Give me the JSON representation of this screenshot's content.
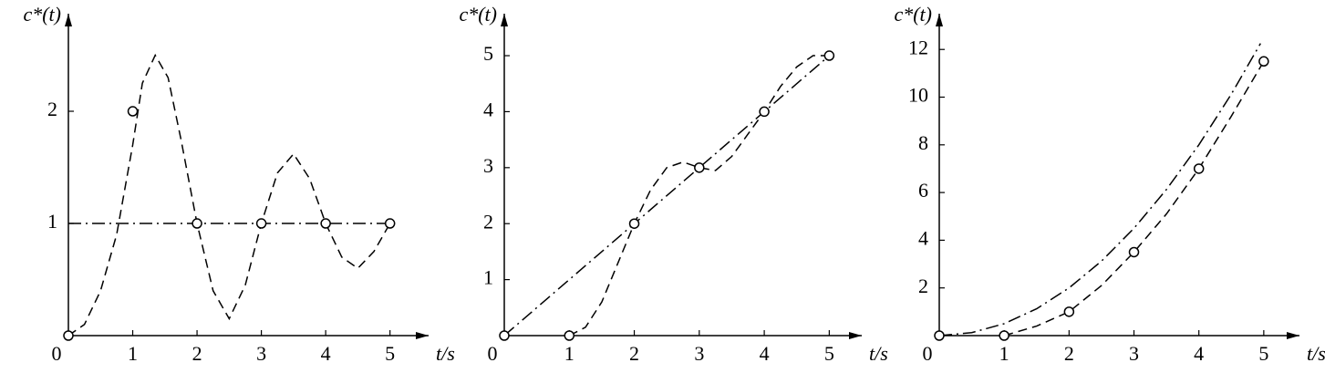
{
  "chart_data": [
    {
      "type": "line",
      "ylabel": "c*(t)",
      "xlabel": "t/s",
      "xlim": [
        0,
        5.6
      ],
      "ylim": [
        0,
        2.87
      ],
      "xticks": [
        0,
        1,
        2,
        3,
        4,
        5
      ],
      "yticks": [
        1,
        2
      ],
      "series": [
        {
          "color": "#000000",
          "linestyle": "dashdot",
          "x": [
            0,
            5
          ],
          "values": [
            1,
            1
          ]
        },
        {
          "color": "#000000",
          "linestyle": "dashed",
          "x": [
            0,
            0.25,
            0.5,
            0.75,
            1,
            1.15,
            1.35,
            1.55,
            1.75,
            2,
            2.25,
            2.5,
            2.75,
            3,
            3.25,
            3.5,
            3.75,
            4,
            4.25,
            4.5,
            4.75,
            5
          ],
          "values": [
            0,
            0.1,
            0.4,
            0.9,
            1.7,
            2.25,
            2.5,
            2.3,
            1.75,
            1,
            0.4,
            0.15,
            0.45,
            1,
            1.45,
            1.62,
            1.4,
            1,
            0.7,
            0.6,
            0.75,
            1
          ]
        },
        {
          "color": "#000000",
          "linestyle": "none",
          "marker": "circle",
          "x": [
            0,
            1,
            2,
            3,
            4,
            5
          ],
          "values": [
            0,
            2,
            1,
            1,
            1,
            1
          ]
        }
      ]
    },
    {
      "type": "line",
      "ylabel": "c*(t)",
      "xlabel": "t/s",
      "xlim": [
        0,
        5.5
      ],
      "ylim": [
        0,
        5.75
      ],
      "xticks": [
        0,
        1,
        2,
        3,
        4,
        5
      ],
      "yticks": [
        1,
        2,
        3,
        4,
        5
      ],
      "series": [
        {
          "color": "#000000",
          "linestyle": "dashdot",
          "x": [
            0,
            5
          ],
          "values": [
            0,
            5
          ]
        },
        {
          "color": "#000000",
          "linestyle": "dashed",
          "x": [
            1,
            1.25,
            1.5,
            1.75,
            2,
            2.25,
            2.5,
            2.75,
            3,
            3.25,
            3.5,
            3.75,
            4,
            4.25,
            4.5,
            4.75,
            5
          ],
          "values": [
            0,
            0.15,
            0.6,
            1.3,
            2,
            2.6,
            3,
            3.1,
            3,
            2.95,
            3.2,
            3.6,
            4,
            4.45,
            4.8,
            5,
            5
          ]
        },
        {
          "color": "#000000",
          "linestyle": "none",
          "marker": "circle",
          "x": [
            0,
            1,
            2,
            3,
            4,
            5
          ],
          "values": [
            0,
            0,
            2,
            3,
            4,
            5
          ]
        }
      ]
    },
    {
      "type": "line",
      "ylabel": "c*(t)",
      "xlabel": "t/s",
      "xlim": [
        0,
        5.55
      ],
      "ylim": [
        0,
        13.5
      ],
      "xticks": [
        0,
        1,
        2,
        3,
        4,
        5
      ],
      "yticks": [
        2,
        4,
        6,
        8,
        10,
        12
      ],
      "series": [
        {
          "color": "#000000",
          "linestyle": "dashdot",
          "x": [
            0,
            0.5,
            1,
            1.5,
            2,
            2.5,
            3,
            3.5,
            4,
            4.5,
            4.95
          ],
          "values": [
            0,
            0.125,
            0.5,
            1.125,
            2,
            3.125,
            4.5,
            6.125,
            8,
            10.125,
            12.25
          ]
        },
        {
          "color": "#000000",
          "linestyle": "dashed",
          "x": [
            1,
            1.5,
            2,
            2.5,
            3,
            3.5,
            4,
            4.5,
            5
          ],
          "values": [
            0,
            0.4,
            1,
            2.1,
            3.5,
            5.1,
            7,
            9.2,
            11.5
          ]
        },
        {
          "color": "#000000",
          "linestyle": "none",
          "marker": "circle",
          "x": [
            0,
            1,
            2,
            3,
            4,
            5
          ],
          "values": [
            0,
            0,
            1,
            3.5,
            7,
            11.5
          ]
        }
      ]
    }
  ]
}
